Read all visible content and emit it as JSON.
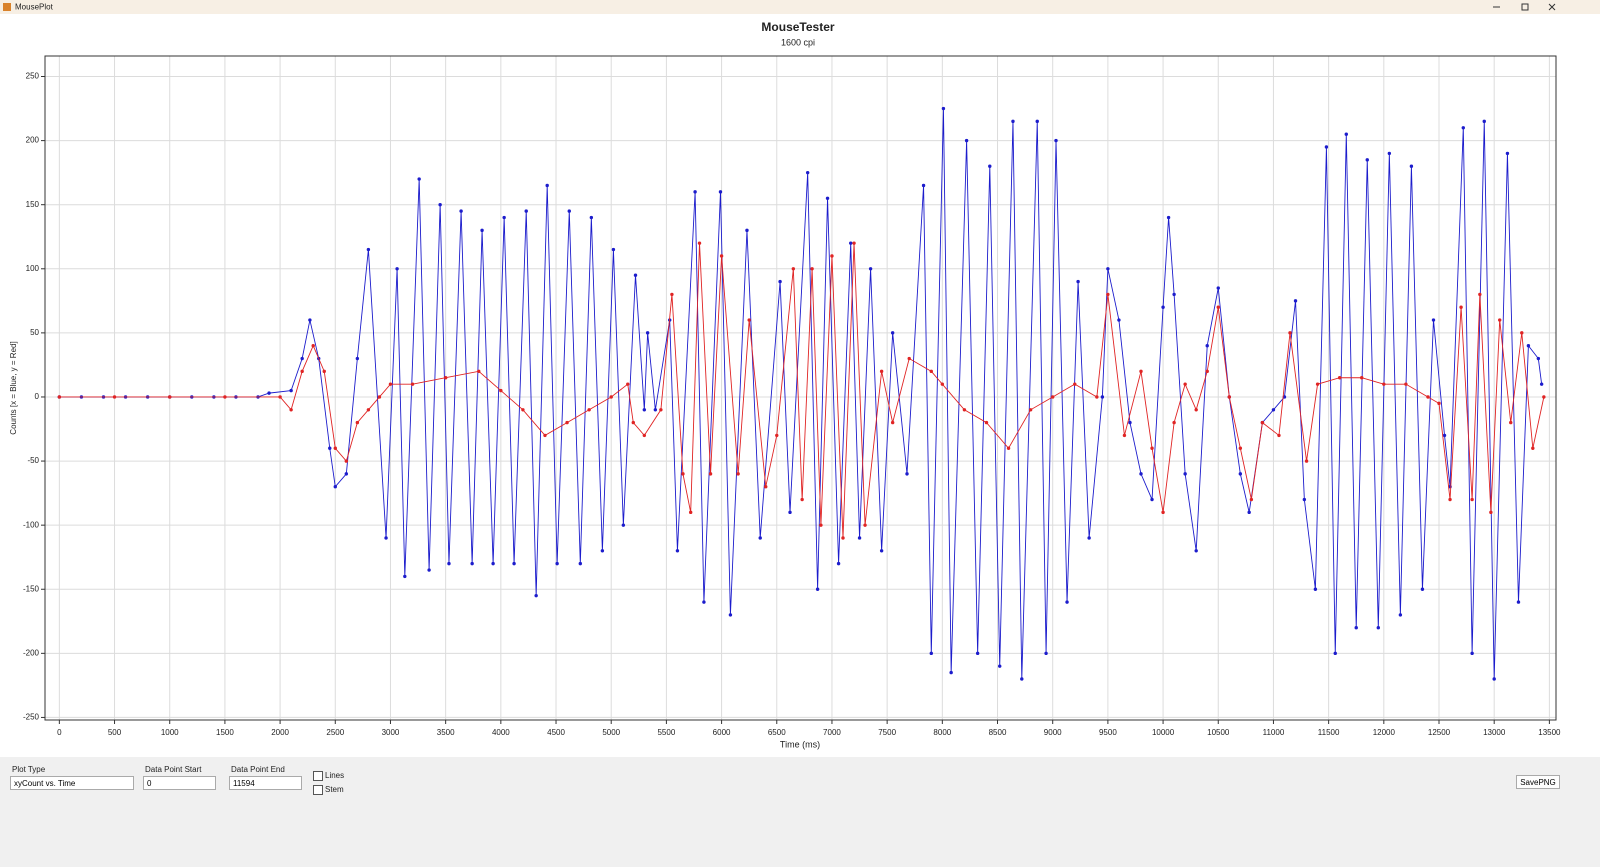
{
  "window": {
    "title": "MousePlot"
  },
  "controls": {
    "plot_type_label": "Plot Type",
    "plot_type": "xyCount vs. Time",
    "start_label": "Data Point Start",
    "start": "0",
    "end_label": "Data Point End",
    "end": "11594",
    "lines": "Lines",
    "stem": "Stem",
    "save": "SavePNG"
  },
  "chart_data": {
    "type": "scatter",
    "title": "MouseTester",
    "subtitle": "1600 cpi",
    "x_label": "Time (ms)",
    "y_label": "Counts [x = Blue, y = Red]",
    "xlim": [
      -130,
      13560
    ],
    "ylim": [
      -252,
      266
    ],
    "xticks": [
      0,
      500,
      1000,
      1500,
      2000,
      2500,
      3000,
      3500,
      4000,
      4500,
      5000,
      5500,
      6000,
      6500,
      7000,
      7500,
      8000,
      8500,
      9000,
      9500,
      10000,
      10500,
      11000,
      11500,
      12000,
      12500,
      13000,
      13500
    ],
    "yticks": [
      -250,
      -200,
      -150,
      -100,
      -50,
      0,
      50,
      100,
      150,
      200,
      250
    ],
    "grid": true,
    "connect": true,
    "series": [
      {
        "color": "#1c1ccc",
        "x": [
          0,
          200,
          400,
          600,
          800,
          1000,
          1200,
          1400,
          1600,
          1800,
          1900,
          2100,
          2200,
          2270,
          2350,
          2450,
          2500,
          2600,
          2700,
          2800,
          2960,
          3060,
          3130,
          3260,
          3350,
          3450,
          3530,
          3640,
          3740,
          3830,
          3930,
          4030,
          4120,
          4230,
          4320,
          4420,
          4510,
          4620,
          4720,
          4820,
          4920,
          5020,
          5110,
          5220,
          5300,
          5330,
          5400,
          5530,
          5600,
          5760,
          5840,
          5990,
          6080,
          6230,
          6350,
          6530,
          6620,
          6780,
          6870,
          6960,
          7060,
          7170,
          7250,
          7350,
          7450,
          7550,
          7680,
          7830,
          7900,
          8010,
          8080,
          8220,
          8320,
          8430,
          8520,
          8640,
          8720,
          8860,
          8940,
          9030,
          9130,
          9230,
          9330,
          9450,
          9500,
          9600,
          9700,
          9800,
          9900,
          10000,
          10050,
          10100,
          10200,
          10300,
          10400,
          10500,
          10600,
          10700,
          10780,
          10900,
          11000,
          11100,
          11200,
          11280,
          11380,
          11480,
          11560,
          11660,
          11750,
          11850,
          11950,
          12050,
          12150,
          12250,
          12350,
          12450,
          12550,
          12600,
          12720,
          12800,
          12910,
          13000,
          13120,
          13220,
          13310,
          13400,
          13430
        ],
        "values": [
          0,
          0,
          0,
          0,
          0,
          0,
          0,
          0,
          0,
          0,
          3,
          5,
          30,
          60,
          30,
          -40,
          -70,
          -60,
          30,
          115,
          -110,
          100,
          -140,
          170,
          -135,
          150,
          -130,
          145,
          -130,
          130,
          -130,
          140,
          -130,
          145,
          -155,
          165,
          -130,
          145,
          -130,
          140,
          -120,
          115,
          -100,
          95,
          -10,
          50,
          -10,
          60,
          -120,
          160,
          -160,
          160,
          -170,
          130,
          -110,
          90,
          -90,
          175,
          -150,
          155,
          -130,
          120,
          -110,
          100,
          -120,
          50,
          -60,
          165,
          -200,
          225,
          -215,
          200,
          -200,
          180,
          -210,
          215,
          -220,
          215,
          -200,
          200,
          -160,
          90,
          -110,
          0,
          100,
          60,
          -20,
          -60,
          -80,
          70,
          140,
          80,
          -60,
          -120,
          40,
          85,
          0,
          -60,
          -90,
          -20,
          -10,
          0,
          75,
          -80,
          -150,
          195,
          -200,
          205,
          -180,
          185,
          -180,
          190,
          -170,
          180,
          -150,
          60,
          -30,
          -70,
          210,
          -200,
          215,
          -220,
          190,
          -160,
          40,
          30,
          10
        ]
      },
      {
        "color": "#e02424",
        "x": [
          0,
          500,
          1000,
          1500,
          2000,
          2100,
          2200,
          2300,
          2400,
          2500,
          2600,
          2700,
          2800,
          2900,
          3000,
          3200,
          3500,
          3800,
          4000,
          4200,
          4400,
          4600,
          4800,
          5000,
          5150,
          5200,
          5300,
          5450,
          5550,
          5650,
          5720,
          5800,
          5900,
          6000,
          6150,
          6250,
          6400,
          6500,
          6650,
          6730,
          6820,
          6900,
          7000,
          7100,
          7200,
          7300,
          7450,
          7550,
          7700,
          7900,
          8000,
          8200,
          8400,
          8600,
          8800,
          9000,
          9200,
          9400,
          9500,
          9650,
          9800,
          9900,
          10000,
          10100,
          10200,
          10300,
          10400,
          10500,
          10600,
          10700,
          10800,
          10900,
          11050,
          11150,
          11300,
          11400,
          11600,
          11800,
          12000,
          12200,
          12400,
          12500,
          12600,
          12700,
          12800,
          12870,
          12970,
          13050,
          13150,
          13250,
          13350,
          13450
        ],
        "values": [
          0,
          0,
          0,
          0,
          0,
          -10,
          20,
          40,
          20,
          -40,
          -50,
          -20,
          -10,
          0,
          10,
          10,
          15,
          20,
          5,
          -10,
          -30,
          -20,
          -10,
          0,
          10,
          -20,
          -30,
          -10,
          80,
          -60,
          -90,
          120,
          -60,
          110,
          -60,
          60,
          -70,
          -30,
          100,
          -80,
          100,
          -100,
          110,
          -110,
          120,
          -100,
          20,
          -20,
          30,
          20,
          10,
          -10,
          -20,
          -40,
          -10,
          0,
          10,
          0,
          80,
          -30,
          20,
          -40,
          -90,
          -20,
          10,
          -10,
          20,
          70,
          0,
          -40,
          -80,
          -20,
          -30,
          50,
          -50,
          10,
          15,
          15,
          10,
          10,
          0,
          -5,
          -80,
          70,
          -80,
          80,
          -90,
          60,
          -20,
          50,
          -40,
          0
        ]
      }
    ]
  }
}
